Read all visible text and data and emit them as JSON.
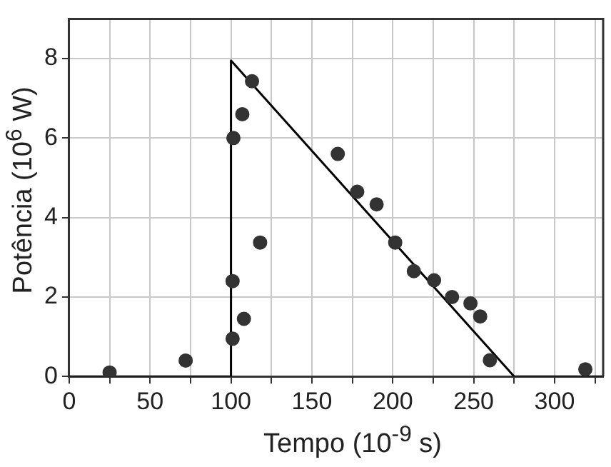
{
  "chart_data": {
    "type": "scatter",
    "xlabel": "Tempo (10$^{-9}$ s)",
    "ylabel": "Potência (10$^{6}$ W)",
    "xlim": [
      0,
      330
    ],
    "ylim": [
      0,
      9
    ],
    "xticks": [
      0,
      {
        "value": 25,
        "label": null
      },
      50,
      {
        "value": 75,
        "label": null
      },
      100,
      {
        "value": 125,
        "label": null
      },
      150,
      {
        "value": 175,
        "label": null
      },
      200,
      {
        "value": 225,
        "label": null
      },
      250,
      {
        "value": 275,
        "label": null
      },
      300,
      {
        "value": 325,
        "label": null
      }
    ],
    "yticks": [
      0,
      2,
      4,
      6,
      8
    ],
    "grid": true,
    "legend": false,
    "series": [
      {
        "marker": "circle",
        "color": "#333333",
        "x": [
          25,
          72,
          101,
          108,
          101,
          118,
          101.5,
          107,
          113,
          166,
          178,
          190,
          201.5,
          213,
          225.5,
          236.6,
          248,
          254,
          260,
          319
        ],
        "values": [
          0.1,
          0.4,
          0.95,
          1.45,
          2.4,
          3.37,
          6.0,
          6.6,
          7.43,
          5.6,
          4.65,
          4.33,
          3.37,
          2.65,
          2.42,
          2.0,
          1.84,
          1.51,
          0.41,
          0.18
        ]
      },
      {
        "type": "line",
        "marker": "none",
        "color": "#000000",
        "x": [
          0,
          100,
          100,
          275,
          330
        ],
        "values": [
          0,
          0,
          7.95,
          0,
          0
        ]
      }
    ]
  }
}
